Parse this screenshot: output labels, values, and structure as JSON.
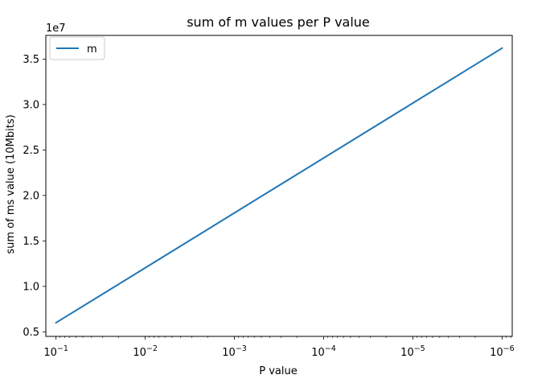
{
  "chart_data": {
    "type": "line",
    "title": "sum of m values per P value",
    "xlabel": "P value",
    "ylabel": "sum of ms value (10Mbits)",
    "x_scale": "log",
    "x_axis_inverted": true,
    "xlim": [
      0.13,
      7.7e-07
    ],
    "x_ticks": [
      0.1,
      0.01,
      0.001,
      0.0001,
      1e-05,
      1e-06
    ],
    "x_tick_labels": [
      {
        "base": "10",
        "exponent": "−1"
      },
      {
        "base": "10",
        "exponent": "−2"
      },
      {
        "base": "10",
        "exponent": "−3"
      },
      {
        "base": "10",
        "exponent": "−4"
      },
      {
        "base": "10",
        "exponent": "−5"
      },
      {
        "base": "10",
        "exponent": "−6"
      }
    ],
    "ylim": [
      4500000,
      37600000
    ],
    "y_ticks": [
      5000000,
      10000000,
      15000000,
      20000000,
      25000000,
      30000000,
      35000000
    ],
    "y_tick_labels": [
      "0.5",
      "1.0",
      "1.5",
      "2.0",
      "2.5",
      "3.0",
      "3.5"
    ],
    "y_offset_label": "1e7",
    "grid": false,
    "legend": {
      "position": "top-left",
      "entries": [
        "m"
      ]
    },
    "series": [
      {
        "name": "m",
        "color": "#1f77b4",
        "x": [
          0.1,
          1e-06
        ],
        "y": [
          6000000,
          36200000
        ]
      }
    ]
  }
}
